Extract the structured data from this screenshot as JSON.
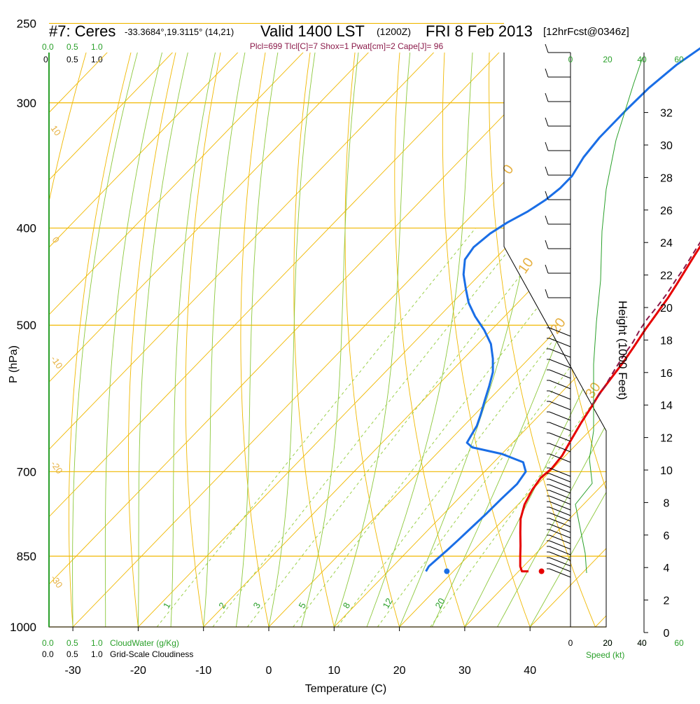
{
  "header": {
    "station": "#7: Ceres",
    "coords": "-33.3684°,19.3115° (14,21)",
    "valid": "Valid 1400 LST",
    "zulu": "(1200Z)",
    "date": "FRI 8 Feb 2013",
    "forecast": "[12hrFcst@0346z]",
    "indices": "Plcl=699 Tlcl[C]=7 Shox=1 Pwat[cm]=2 Cape[J]= 96"
  },
  "colors": {
    "isobar": "#f0b800",
    "dry_adiabat": "#f0b800",
    "moist_adiabat": "#8cc83c",
    "mixing_ratio": "#9bd04a",
    "temperature": "#e60000",
    "dewpoint": "#1a6ee6",
    "parcel": "#8b1a4a",
    "cloud": "#2aa02a",
    "label_orange": "#e6b040",
    "label_green": "#2aa02a",
    "label_indices": "#8b1a4a"
  },
  "chart_data": {
    "type": "line",
    "title": "Valid 1400 LST",
    "xlabel": "Temperature (C)",
    "ylabel": "P (hPa)",
    "y2label": "Height (1000 Feet)",
    "xlim": [
      -33,
      52
    ],
    "ylim": [
      1000,
      250
    ],
    "x_ticks": [
      "-30",
      "-20",
      "-10",
      "0",
      "10",
      "20",
      "30",
      "40"
    ],
    "x_tick_values": [
      -30,
      -20,
      -10,
      0,
      10,
      20,
      30,
      40
    ],
    "p_ticks": [
      {
        "label": "250",
        "value": 250
      },
      {
        "label": "300",
        "value": 300
      },
      {
        "label": "400",
        "value": 400
      },
      {
        "label": "500",
        "value": 500
      },
      {
        "label": "P (hPa)",
        "value": 0
      },
      {
        "label": "700",
        "value": 700
      },
      {
        "label": "850",
        "value": 850
      },
      {
        "label": "1000",
        "value": 1000
      }
    ],
    "height_ticks_kft": [
      0,
      2,
      4,
      6,
      8,
      10,
      12,
      14,
      16,
      18,
      20,
      22,
      24,
      26,
      28,
      30,
      32
    ],
    "cloud_axis_top": [
      {
        "label": "0.0",
        "color": "green"
      },
      {
        "label": "0.5",
        "color": "green"
      },
      {
        "label": "1.0",
        "color": "green"
      },
      {
        "label": "0",
        "color": "black"
      },
      {
        "label": "0.5",
        "color": "black"
      },
      {
        "label": "1.0",
        "color": "black"
      }
    ],
    "cloud_axis_bottom": {
      "green": [
        "0.0",
        "0.5",
        "1.0"
      ],
      "black": [
        "0.0",
        "0.5",
        "1.0"
      ],
      "cloudwater_label": "CloudWater (g/Kg)",
      "cloudiness_label": "Grid-Scale Cloudiness"
    },
    "speed_axis": {
      "label": "Speed (kt)",
      "ticks_green": [
        "20",
        "40",
        "60"
      ],
      "ticks_black": [
        "0",
        "20",
        "40"
      ],
      "range": [
        0,
        60
      ]
    },
    "isobars": [
      250,
      300,
      400,
      500,
      700,
      850,
      1000
    ],
    "dry_adiabat_labels": [
      "10",
      "0",
      "-10",
      "-20",
      "-30",
      "0",
      "10",
      "20",
      "30"
    ],
    "mixing_ratio_labels": [
      "1",
      "2",
      "3",
      "5",
      "8",
      "12",
      "20"
    ],
    "series": [
      {
        "name": "temperature",
        "points": [
          [
            31.5,
            880
          ],
          [
            30.5,
            880
          ],
          [
            29.5,
            870
          ],
          [
            28,
            850
          ],
          [
            26.5,
            830
          ],
          [
            24.5,
            805
          ],
          [
            22.5,
            780
          ],
          [
            21,
            755
          ],
          [
            20,
            730
          ],
          [
            19.5,
            710
          ],
          [
            19.8,
            695
          ],
          [
            19.5,
            675
          ],
          [
            18.5,
            650
          ],
          [
            17.5,
            625
          ],
          [
            16.8,
            605
          ],
          [
            16,
            585
          ],
          [
            15.5,
            565
          ],
          [
            15,
            545
          ],
          [
            14.3,
            525
          ],
          [
            13.5,
            505
          ],
          [
            13,
            490
          ],
          [
            12.3,
            470
          ],
          [
            11.6,
            455
          ],
          [
            10.8,
            440
          ],
          [
            10,
            425
          ],
          [
            9.2,
            410
          ],
          [
            8.3,
            395
          ],
          [
            7.4,
            380
          ],
          [
            6.5,
            366
          ],
          [
            5.7,
            353
          ],
          [
            5,
            340
          ],
          [
            4.2,
            328
          ],
          [
            3.2,
            316
          ],
          [
            2.2,
            305
          ],
          [
            1.2,
            295
          ],
          [
            -0.2,
            282
          ],
          [
            -1.6,
            270
          ],
          [
            -3,
            259
          ],
          [
            -4,
            252
          ]
        ]
      },
      {
        "name": "dewpoint",
        "points": [
          [
            15.8,
            880
          ],
          [
            15.5,
            870
          ],
          [
            15.7,
            855
          ],
          [
            15.9,
            840
          ],
          [
            16.1,
            820
          ],
          [
            16.3,
            795
          ],
          [
            16.5,
            770
          ],
          [
            16.6,
            745
          ],
          [
            16.8,
            720
          ],
          [
            16.3,
            700
          ],
          [
            14.5,
            685
          ],
          [
            10,
            672
          ],
          [
            4.5,
            662
          ],
          [
            3,
            655
          ],
          [
            2.6,
            645
          ],
          [
            2,
            630
          ],
          [
            1,
            615
          ],
          [
            -0.5,
            595
          ],
          [
            -2,
            575
          ],
          [
            -3.5,
            557
          ],
          [
            -5.5,
            540
          ],
          [
            -8,
            522
          ],
          [
            -11,
            506
          ],
          [
            -14.5,
            490
          ],
          [
            -17.5,
            475
          ],
          [
            -20,
            460
          ],
          [
            -22.5,
            445
          ],
          [
            -24.5,
            430
          ],
          [
            -25,
            418
          ],
          [
            -24.5,
            405
          ],
          [
            -23.5,
            395
          ],
          [
            -22,
            385
          ],
          [
            -21,
            375
          ],
          [
            -20.5,
            365
          ],
          [
            -20.5,
            355
          ],
          [
            -21.5,
            340
          ],
          [
            -22,
            325
          ],
          [
            -22,
            305
          ],
          [
            -21.8,
            290
          ],
          [
            -21,
            275
          ],
          [
            -19.5,
            262
          ],
          [
            -18,
            252
          ]
        ]
      },
      {
        "name": "parcel",
        "points": [
          [
            16.5,
            600
          ],
          [
            16.1,
            585
          ],
          [
            15.5,
            570
          ],
          [
            14.7,
            552
          ],
          [
            14,
            535
          ],
          [
            13.5,
            520
          ],
          [
            12.7,
            505
          ],
          [
            12.2,
            492
          ],
          [
            11.9,
            478
          ],
          [
            11.5,
            465
          ],
          [
            10.8,
            450
          ],
          [
            10.3,
            438
          ],
          [
            9.6,
            425
          ],
          [
            8.9,
            412
          ],
          [
            8.2,
            400
          ],
          [
            7.5,
            388
          ],
          [
            6.8,
            376
          ],
          [
            6,
            365
          ],
          [
            5.3,
            356
          ]
        ]
      }
    ],
    "surface_points": [
      {
        "name": "surface temperature",
        "x": 33.5,
        "y": 880
      },
      {
        "name": "surface dewpoint",
        "x": 19,
        "y": 880
      }
    ]
  }
}
